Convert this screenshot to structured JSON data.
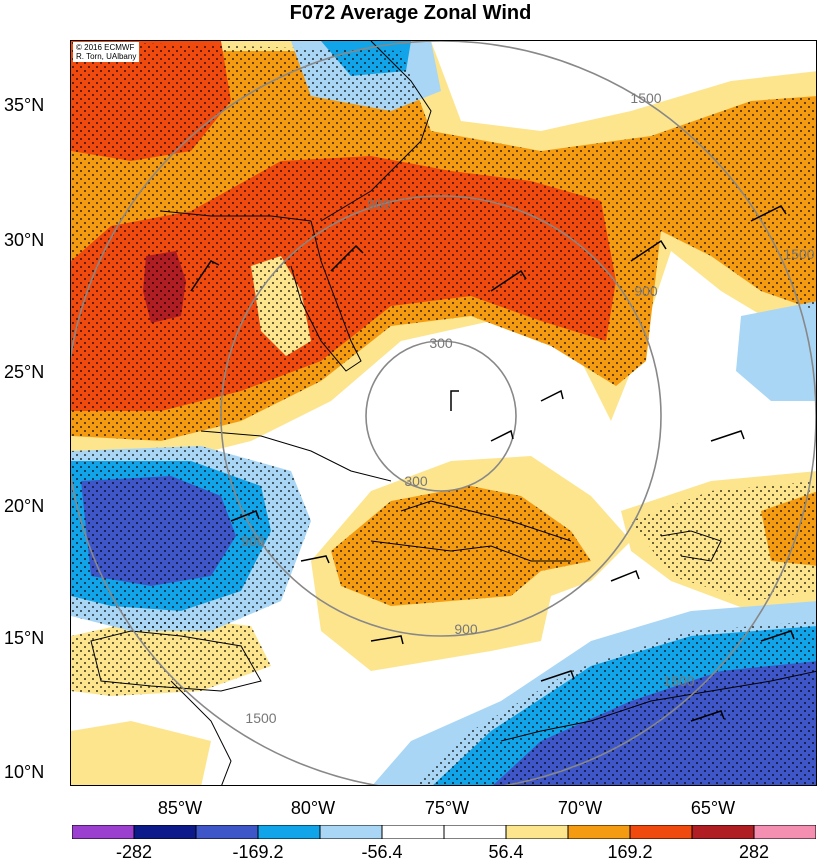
{
  "title": "F072 Average Zonal Wind",
  "credit_line1": "© 2016 ECMWF",
  "credit_line2": "R. Torn, UAlbany",
  "lat_labels": [
    "35°N",
    "30°N",
    "25°N",
    "20°N",
    "15°N",
    "10°N"
  ],
  "lon_labels": [
    "85°W",
    "80°W",
    "75°W",
    "70°W",
    "65°W"
  ],
  "colorbar": {
    "ticks": [
      "-282",
      "-169.2",
      "-56.4",
      "56.4",
      "169.2",
      "282"
    ],
    "colors": [
      "#9a3fd0",
      "#0d1b8a",
      "#3f56c9",
      "#12a4e8",
      "#a9d6f5",
      "#ffffff",
      "#ffffff",
      "#fde58e",
      "#f59b12",
      "#f04a0f",
      "#b01e23",
      "#f48fb1"
    ]
  },
  "contour_labels": [
    "300",
    "300",
    "900",
    "900",
    "900",
    "900",
    "1500",
    "1500",
    "1500",
    "1500"
  ],
  "map_features": {
    "colors": {
      "orange": "#f59b12",
      "red": "#f04a0f",
      "darkred": "#b01e23",
      "yellow": "#fde58e",
      "lightblue": "#a9d6f5",
      "cyan": "#12a4e8",
      "blue": "#3f56c9"
    }
  }
}
